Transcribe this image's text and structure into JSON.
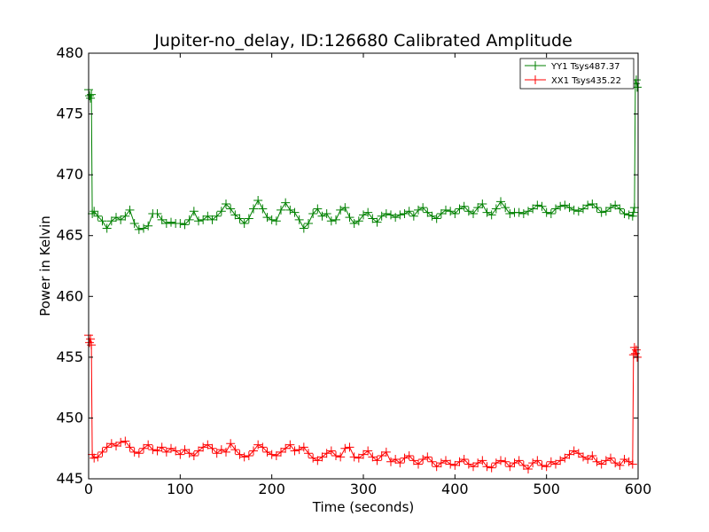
{
  "chart_data": {
    "type": "line",
    "title": "Jupiter-no_delay, ID:126680 Calibrated Amplitude",
    "xlabel": "Time (seconds)",
    "ylabel": "Power in Kelvin",
    "xlim": [
      0,
      600
    ],
    "ylim": [
      445,
      480
    ],
    "xticks": [
      "0",
      "100",
      "200",
      "300",
      "400",
      "500",
      "600"
    ],
    "yticks": [
      "445",
      "450",
      "455",
      "460",
      "465",
      "470",
      "475",
      "480"
    ],
    "grid": false,
    "legend_position": "top-right",
    "marker": "plus",
    "series": [
      {
        "name": "YY1 Tsys487.37",
        "color": "#008000",
        "x": [
          0,
          1,
          2,
          3,
          4,
          6,
          10,
          15,
          20,
          25,
          30,
          35,
          40,
          45,
          50,
          55,
          60,
          65,
          70,
          75,
          80,
          85,
          90,
          95,
          100,
          105,
          110,
          115,
          120,
          125,
          130,
          135,
          140,
          145,
          150,
          155,
          160,
          165,
          170,
          175,
          180,
          185,
          190,
          195,
          200,
          205,
          210,
          215,
          220,
          225,
          230,
          235,
          240,
          245,
          250,
          255,
          260,
          265,
          270,
          275,
          280,
          285,
          290,
          295,
          300,
          305,
          310,
          315,
          320,
          325,
          330,
          335,
          340,
          345,
          350,
          355,
          360,
          365,
          370,
          375,
          380,
          385,
          390,
          395,
          400,
          405,
          410,
          415,
          420,
          425,
          430,
          435,
          440,
          445,
          450,
          455,
          460,
          465,
          470,
          475,
          480,
          485,
          490,
          495,
          500,
          505,
          510,
          515,
          520,
          525,
          530,
          535,
          540,
          545,
          550,
          555,
          560,
          565,
          570,
          575,
          580,
          585,
          590,
          594,
          595,
          596,
          597,
          598,
          599
        ],
        "y": [
          477,
          476.5,
          476.3,
          476.6,
          466.8,
          467,
          466.6,
          466.2,
          465.6,
          466.2,
          466.5,
          466.3,
          466.6,
          467.1,
          466.0,
          465.5,
          465.6,
          465.8,
          466.8,
          466.8,
          466.3,
          466.0,
          466.1,
          466.0,
          466.0,
          465.9,
          466.3,
          467.0,
          466.2,
          466.3,
          466.6,
          466.3,
          466.6,
          467.0,
          467.6,
          467.2,
          466.7,
          466.4,
          466.0,
          466.4,
          467.2,
          467.9,
          467.2,
          466.5,
          466.3,
          466.2,
          467.1,
          467.7,
          467.1,
          466.9,
          466.3,
          465.6,
          466.0,
          466.8,
          467.2,
          466.6,
          466.8,
          466.2,
          466.3,
          467.1,
          467.3,
          466.5,
          466.0,
          466.2,
          466.7,
          466.9,
          466.4,
          466.1,
          466.6,
          466.8,
          466.7,
          466.5,
          466.7,
          466.8,
          467.0,
          466.6,
          467.1,
          467.3,
          466.9,
          466.6,
          466.4,
          466.8,
          467.1,
          467.0,
          466.8,
          467.2,
          467.4,
          467.0,
          466.8,
          467.3,
          467.6,
          466.9,
          466.7,
          467.2,
          467.8,
          467.3,
          466.8,
          466.9,
          466.9,
          466.8,
          467.0,
          467.2,
          467.5,
          467.4,
          466.9,
          466.8,
          467.2,
          467.4,
          467.5,
          467.3,
          467.1,
          467.0,
          467.2,
          467.5,
          467.6,
          467.3,
          466.9,
          467.0,
          467.3,
          467.5,
          467.2,
          466.8,
          466.7,
          466.6,
          466.9,
          467.3,
          477.5,
          477.8,
          477.2
        ]
      },
      {
        "name": "XX1 Tsys435.22",
        "color": "#ff0000",
        "x": [
          0,
          1,
          2,
          3,
          4,
          6,
          10,
          15,
          20,
          25,
          30,
          35,
          40,
          45,
          50,
          55,
          60,
          65,
          70,
          75,
          80,
          85,
          90,
          95,
          100,
          105,
          110,
          115,
          120,
          125,
          130,
          135,
          140,
          145,
          150,
          155,
          160,
          165,
          170,
          175,
          180,
          185,
          190,
          195,
          200,
          205,
          210,
          215,
          220,
          225,
          230,
          235,
          240,
          245,
          250,
          255,
          260,
          265,
          270,
          275,
          280,
          285,
          290,
          295,
          300,
          305,
          310,
          315,
          320,
          325,
          330,
          335,
          340,
          345,
          350,
          355,
          360,
          365,
          370,
          375,
          380,
          385,
          390,
          395,
          400,
          405,
          410,
          415,
          420,
          425,
          430,
          435,
          440,
          445,
          450,
          455,
          460,
          465,
          470,
          475,
          480,
          485,
          490,
          495,
          500,
          505,
          510,
          515,
          520,
          525,
          530,
          535,
          540,
          545,
          550,
          555,
          560,
          565,
          570,
          575,
          580,
          585,
          590,
          594,
          595,
          596,
          597,
          598,
          599
        ],
        "y": [
          456.8,
          456.2,
          456.5,
          456.0,
          447.0,
          446.7,
          446.8,
          447.2,
          447.6,
          447.9,
          447.7,
          448.0,
          448.1,
          447.6,
          447.2,
          447.1,
          447.5,
          447.8,
          447.4,
          447.3,
          447.6,
          447.2,
          447.5,
          447.3,
          447.0,
          447.4,
          447.1,
          446.9,
          447.3,
          447.6,
          447.8,
          447.5,
          447.1,
          447.4,
          447.2,
          447.9,
          447.4,
          447.0,
          446.8,
          446.9,
          447.3,
          447.8,
          447.6,
          447.2,
          447.0,
          446.9,
          447.2,
          447.5,
          447.8,
          447.3,
          447.4,
          447.6,
          447.1,
          446.7,
          446.5,
          446.8,
          447.1,
          447.3,
          446.9,
          446.8,
          447.5,
          447.6,
          446.8,
          446.7,
          447.0,
          447.3,
          446.8,
          446.5,
          446.9,
          447.2,
          446.4,
          446.6,
          446.3,
          446.7,
          446.9,
          446.5,
          446.2,
          446.6,
          446.8,
          446.4,
          446.0,
          446.3,
          446.5,
          446.2,
          446.1,
          446.4,
          446.6,
          446.2,
          446.0,
          446.3,
          446.5,
          446.0,
          445.9,
          446.3,
          446.5,
          446.4,
          446.0,
          446.3,
          446.5,
          446.1,
          445.8,
          446.3,
          446.5,
          446.1,
          446.0,
          446.4,
          446.2,
          446.5,
          446.7,
          447.0,
          447.3,
          447.1,
          446.8,
          446.6,
          446.9,
          446.4,
          446.2,
          446.5,
          446.7,
          446.3,
          446.1,
          446.6,
          446.4,
          446.2,
          455.2,
          455.8,
          455.3,
          455.6,
          455.0
        ]
      }
    ]
  }
}
